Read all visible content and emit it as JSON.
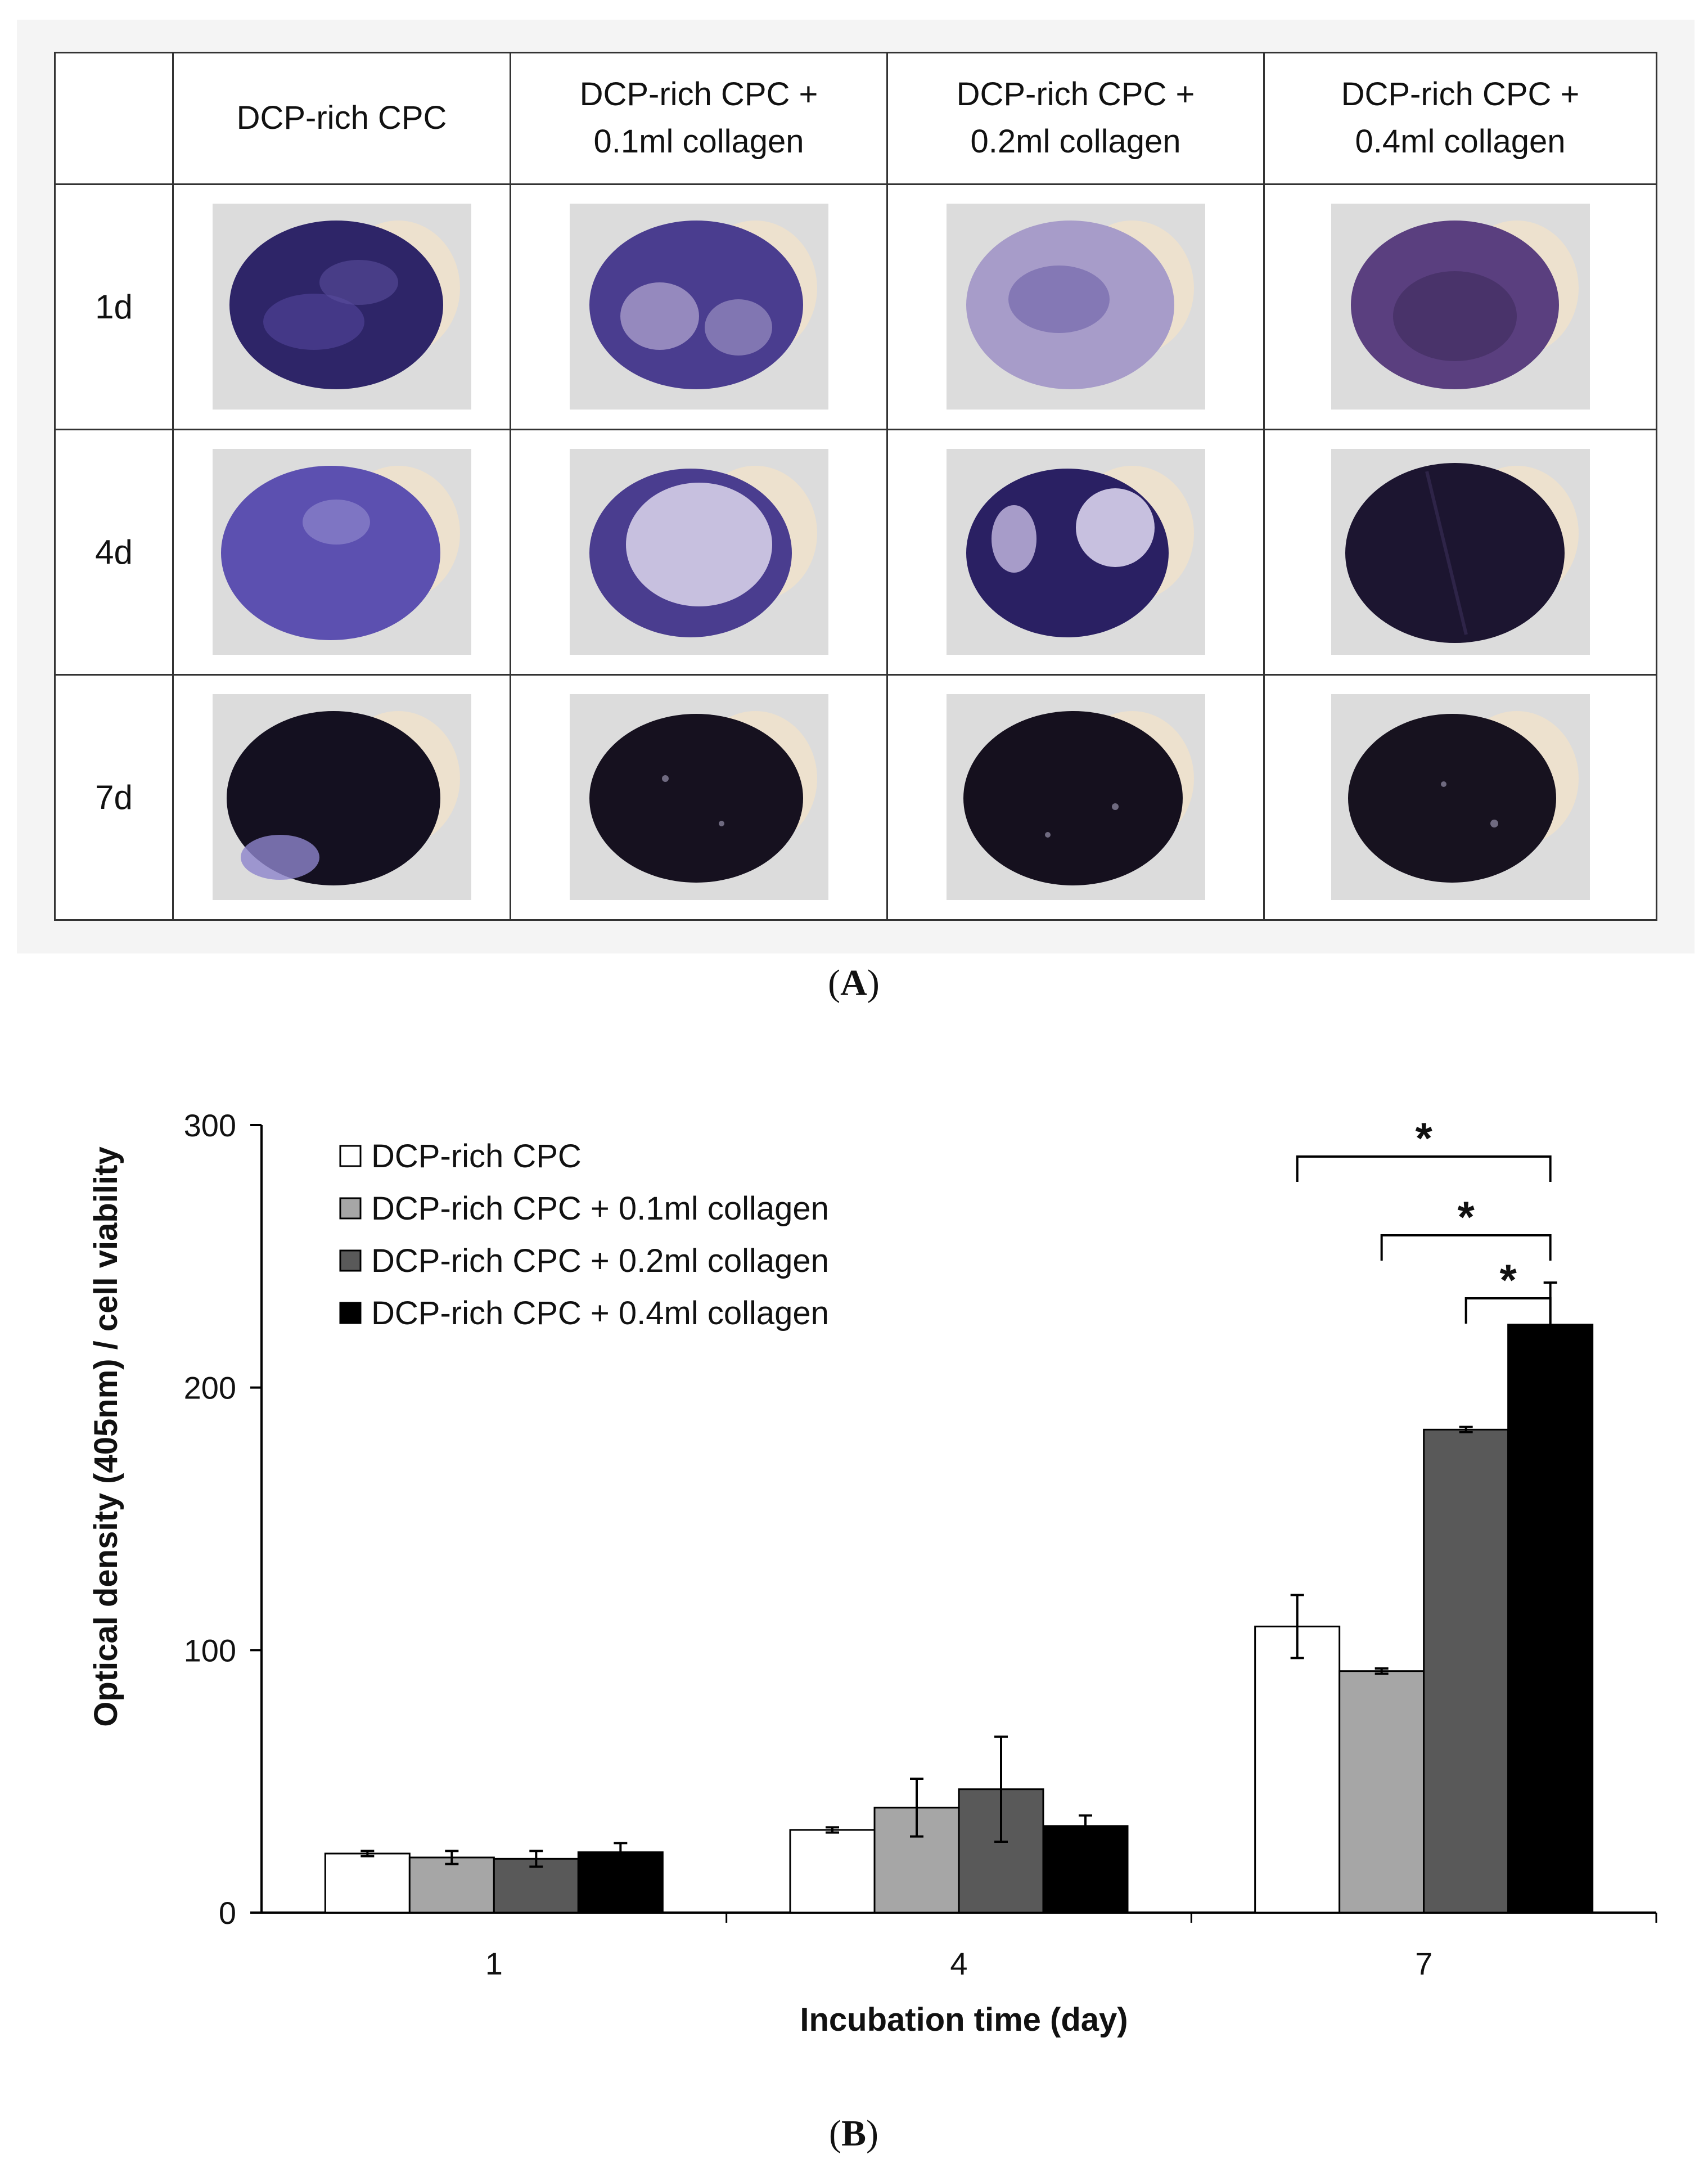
{
  "panel_a": {
    "columns": [
      {
        "line1": "DCP-rich CPC",
        "line2": ""
      },
      {
        "line1": "DCP-rich CPC +",
        "line2": "0.1ml collagen"
      },
      {
        "line1": "DCP-rich CPC +",
        "line2": "0.2ml collagen"
      },
      {
        "line1": "DCP-rich CPC +",
        "line2": "0.4ml collagen"
      }
    ],
    "rows": [
      "1d",
      "4d",
      "7d"
    ],
    "caption_open": "(",
    "caption_letter": "A",
    "caption_close": ")"
  },
  "panel_b": {
    "caption_open": "(",
    "caption_letter": "B",
    "caption_close": ")"
  },
  "colors": {
    "series": [
      "#ffffff",
      "#a6a6a6",
      "#595959",
      "#000000"
    ],
    "stain_dark": "#1c1530",
    "stain_purple": "#4a3d8f",
    "stain_light": "#a79cc9",
    "tile_bg": "#dcdcdc"
  },
  "chart_data": {
    "type": "bar",
    "title": "",
    "xlabel": "Incubation time (day)",
    "ylabel": "Optical density  (405nm) / cell viability",
    "categories": [
      "1",
      "4",
      "7"
    ],
    "ylim": [
      0,
      300
    ],
    "yticks": [
      "0",
      "100",
      "200",
      "300"
    ],
    "legend_position": "top-left",
    "series": [
      {
        "name": "DCP-rich CPC",
        "values": [
          22.5,
          31.5,
          109
        ],
        "errors": [
          1,
          1,
          12
        ]
      },
      {
        "name": "DCP-rich CPC + 0.1ml collagen",
        "values": [
          21,
          40,
          92
        ],
        "errors": [
          2.5,
          11,
          1
        ]
      },
      {
        "name": "DCP-rich CPC + 0.2ml collagen",
        "values": [
          20.5,
          47,
          184
        ],
        "errors": [
          3,
          20,
          1
        ]
      },
      {
        "name": "DCP-rich CPC + 0.4ml collagen",
        "values": [
          23,
          33,
          224
        ],
        "errors": [
          3.5,
          4,
          16
        ]
      }
    ],
    "significance": [
      {
        "from_series": 0,
        "to_series": 3,
        "category": "7",
        "label": "*"
      },
      {
        "from_series": 1,
        "to_series": 3,
        "category": "7",
        "label": "*"
      },
      {
        "from_series": 2,
        "to_series": 3,
        "category": "7",
        "label": "*"
      }
    ]
  }
}
